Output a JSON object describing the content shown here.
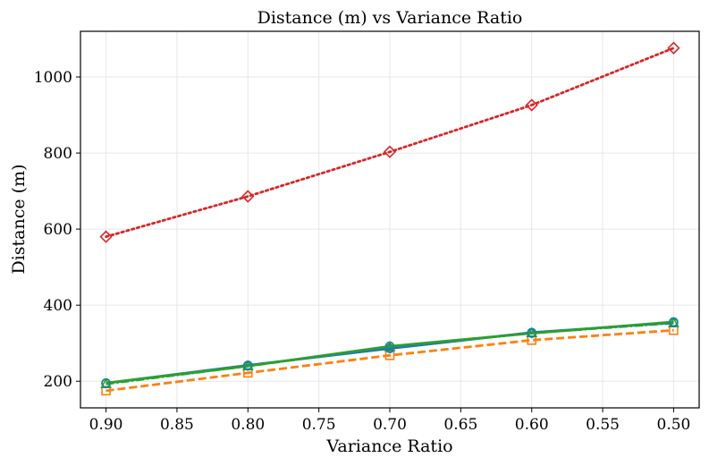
{
  "chart_data": {
    "type": "line",
    "title": "Distance (m) vs Variance Ratio",
    "xlabel": "Variance Ratio",
    "ylabel": "Distance (m)",
    "x": [
      0.9,
      0.8,
      0.7,
      0.6,
      0.5
    ],
    "xlim": [
      0.918,
      0.482
    ],
    "ylim": [
      130,
      1120
    ],
    "xticks": [
      0.9,
      0.85,
      0.8,
      0.75,
      0.7,
      0.65,
      0.6,
      0.55,
      0.5
    ],
    "xtick_labels": [
      "0.90",
      "0.85",
      "0.80",
      "0.75",
      "0.70",
      "0.65",
      "0.60",
      "0.55",
      "0.50"
    ],
    "yticks": [
      200,
      400,
      600,
      800,
      1000
    ],
    "ytick_labels": [
      "200",
      "400",
      "600",
      "800",
      "1000"
    ],
    "grid": true,
    "series": [
      {
        "values": [
          580,
          686,
          803,
          926,
          1076
        ],
        "color": "#d62728",
        "dash": "dotted",
        "marker": "diamond"
      },
      {
        "values": [
          175,
          222,
          268,
          308,
          334
        ],
        "color": "#ff7f0e",
        "dash": "dashed",
        "marker": "square"
      },
      {
        "values": [
          193,
          240,
          290,
          327,
          353
        ],
        "color": "#2ca02c",
        "dash": "dashdot",
        "marker": "triangle"
      },
      {
        "values": [
          195,
          242,
          286,
          328,
          354
        ],
        "color": "#1f77b4",
        "dash": "solid",
        "marker": "circle"
      },
      {
        "values": [
          195,
          240,
          292,
          326,
          356
        ],
        "color": "#2ca02c",
        "dash": "solid",
        "marker": "circle-teal"
      }
    ]
  }
}
